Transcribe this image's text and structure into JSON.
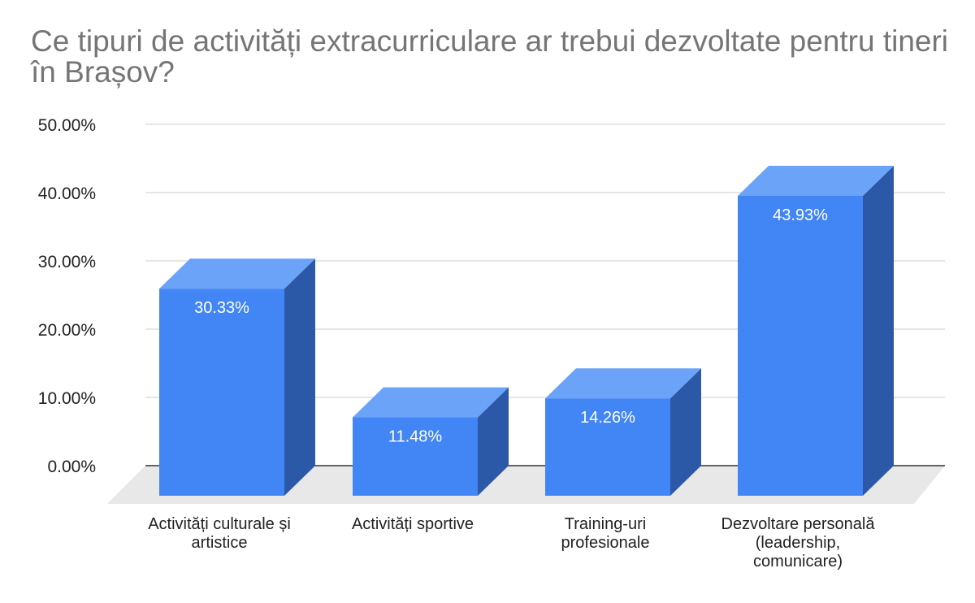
{
  "chart_data": {
    "type": "bar",
    "title": "Ce tipuri de activități extracurriculare ar trebui dezvoltate pentru tineri în Brașov?",
    "xlabel": "",
    "ylabel": "",
    "categories": [
      [
        "Activități culturale și",
        "artistice"
      ],
      [
        "Activități sportive"
      ],
      [
        "Training-uri",
        "profesionale"
      ],
      [
        "Dezvoltare personală",
        "(leadership,",
        "comunicare)"
      ]
    ],
    "values": [
      30.33,
      11.48,
      14.26,
      43.93
    ],
    "data_labels": [
      "30.33%",
      "11.48%",
      "14.26%",
      "43.93%"
    ],
    "ylim": [
      0,
      50
    ],
    "yticks": [
      0,
      10,
      20,
      30,
      40,
      50
    ],
    "ytick_labels": [
      "0.00%",
      "10.00%",
      "20.00%",
      "30.00%",
      "40.00%",
      "50.00%"
    ],
    "grid": true,
    "legend": "none",
    "style": "3d-column"
  },
  "colors": {
    "bar_front": "#4285f4",
    "bar_top": "#6aa3f8",
    "bar_side": "#2c58a8",
    "floor": "#e8e8e8",
    "grid": "#cccccc",
    "axis": "#333333",
    "title": "#757575",
    "tick_text": "#222222",
    "data_label": "#ffffff"
  }
}
